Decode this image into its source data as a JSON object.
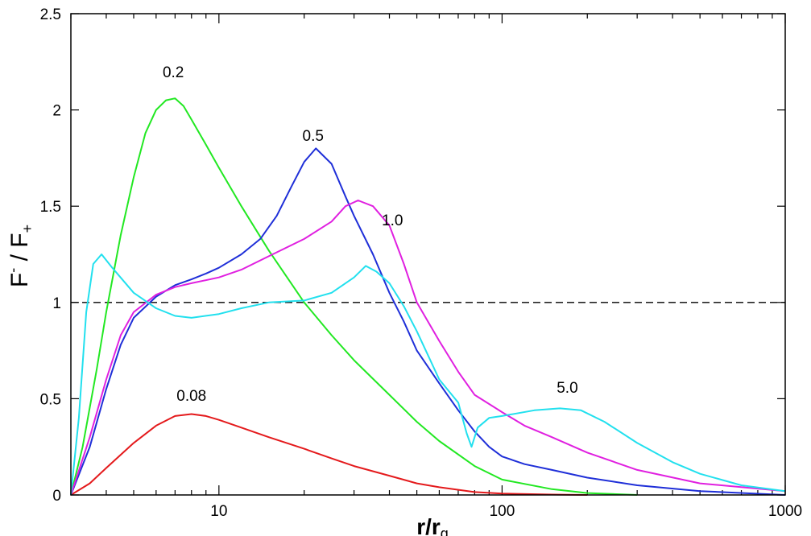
{
  "chart_data": {
    "type": "line",
    "xscale": "log",
    "xlim": [
      3,
      1000
    ],
    "ylim": [
      0,
      2.5
    ],
    "xlabel": {
      "main": "r/r",
      "sub": "g"
    },
    "ylabel": {
      "a": "F",
      "a_sub": "-",
      "sep": " / ",
      "b": "F",
      "b_sub": "+"
    },
    "xticks": [
      {
        "value": 10,
        "label": "10"
      },
      {
        "value": 100,
        "label": "100"
      },
      {
        "value": 1000,
        "label": "1000"
      }
    ],
    "yticks": [
      {
        "value": 0,
        "label": "0"
      },
      {
        "value": 0.5,
        "label": "0.5"
      },
      {
        "value": 1,
        "label": "1"
      },
      {
        "value": 1.5,
        "label": "1.5"
      },
      {
        "value": 2,
        "label": "2"
      },
      {
        "value": 2.5,
        "label": "2.5"
      }
    ],
    "reference_line": {
      "y": 1,
      "style": "dashed",
      "color": "#000000"
    },
    "series": [
      {
        "name": "0.08",
        "color": "#e41a1c",
        "label_at": {
          "x": 8,
          "y": 0.49
        },
        "points": [
          [
            3,
            0
          ],
          [
            3.5,
            0.06
          ],
          [
            4,
            0.14
          ],
          [
            5,
            0.27
          ],
          [
            6,
            0.36
          ],
          [
            7,
            0.41
          ],
          [
            8,
            0.42
          ],
          [
            9,
            0.41
          ],
          [
            10,
            0.39
          ],
          [
            12,
            0.35
          ],
          [
            15,
            0.3
          ],
          [
            20,
            0.24
          ],
          [
            25,
            0.19
          ],
          [
            30,
            0.15
          ],
          [
            40,
            0.1
          ],
          [
            50,
            0.06
          ],
          [
            60,
            0.04
          ],
          [
            80,
            0.015
          ],
          [
            100,
            0.007
          ],
          [
            150,
            0.002
          ],
          [
            200,
            0
          ]
        ]
      },
      {
        "name": "0.2",
        "color": "#22e822",
        "label_at": {
          "x": 6.9,
          "y": 2.17
        },
        "points": [
          [
            3,
            0
          ],
          [
            3.3,
            0.25
          ],
          [
            3.7,
            0.65
          ],
          [
            4,
            0.95
          ],
          [
            4.5,
            1.35
          ],
          [
            5,
            1.65
          ],
          [
            5.5,
            1.88
          ],
          [
            6,
            2.0
          ],
          [
            6.5,
            2.05
          ],
          [
            7,
            2.06
          ],
          [
            7.5,
            2.02
          ],
          [
            8,
            1.95
          ],
          [
            9,
            1.82
          ],
          [
            10,
            1.7
          ],
          [
            12,
            1.5
          ],
          [
            15,
            1.27
          ],
          [
            20,
            1.0
          ],
          [
            25,
            0.83
          ],
          [
            30,
            0.7
          ],
          [
            40,
            0.52
          ],
          [
            50,
            0.38
          ],
          [
            60,
            0.28
          ],
          [
            80,
            0.15
          ],
          [
            100,
            0.08
          ],
          [
            150,
            0.03
          ],
          [
            200,
            0.01
          ],
          [
            300,
            0
          ]
        ]
      },
      {
        "name": "0.5",
        "color": "#1f2fd8",
        "label_at": {
          "x": 21.5,
          "y": 1.84
        },
        "points": [
          [
            3,
            0
          ],
          [
            3.5,
            0.25
          ],
          [
            4,
            0.55
          ],
          [
            4.5,
            0.78
          ],
          [
            5,
            0.92
          ],
          [
            6,
            1.03
          ],
          [
            7,
            1.09
          ],
          [
            8,
            1.12
          ],
          [
            9,
            1.15
          ],
          [
            10,
            1.18
          ],
          [
            12,
            1.25
          ],
          [
            14,
            1.33
          ],
          [
            16,
            1.45
          ],
          [
            18,
            1.6
          ],
          [
            20,
            1.73
          ],
          [
            22,
            1.8
          ],
          [
            25,
            1.72
          ],
          [
            28,
            1.55
          ],
          [
            30,
            1.45
          ],
          [
            35,
            1.25
          ],
          [
            40,
            1.05
          ],
          [
            45,
            0.9
          ],
          [
            50,
            0.75
          ],
          [
            60,
            0.58
          ],
          [
            70,
            0.44
          ],
          [
            80,
            0.33
          ],
          [
            90,
            0.25
          ],
          [
            100,
            0.2
          ],
          [
            120,
            0.16
          ],
          [
            150,
            0.13
          ],
          [
            200,
            0.09
          ],
          [
            300,
            0.05
          ],
          [
            500,
            0.02
          ],
          [
            1000,
            0
          ]
        ]
      },
      {
        "name": "1.0",
        "color": "#e020e0",
        "label_at": {
          "x": 41,
          "y": 1.4
        },
        "points": [
          [
            3,
            0
          ],
          [
            3.5,
            0.3
          ],
          [
            4,
            0.6
          ],
          [
            4.5,
            0.83
          ],
          [
            5,
            0.95
          ],
          [
            6,
            1.04
          ],
          [
            7,
            1.08
          ],
          [
            8,
            1.1
          ],
          [
            10,
            1.13
          ],
          [
            12,
            1.17
          ],
          [
            15,
            1.24
          ],
          [
            20,
            1.33
          ],
          [
            25,
            1.42
          ],
          [
            28,
            1.5
          ],
          [
            31,
            1.53
          ],
          [
            35,
            1.5
          ],
          [
            40,
            1.4
          ],
          [
            45,
            1.2
          ],
          [
            50,
            1.0
          ],
          [
            60,
            0.8
          ],
          [
            70,
            0.64
          ],
          [
            80,
            0.52
          ],
          [
            100,
            0.43
          ],
          [
            120,
            0.36
          ],
          [
            150,
            0.3
          ],
          [
            200,
            0.22
          ],
          [
            300,
            0.13
          ],
          [
            500,
            0.06
          ],
          [
            1000,
            0.02
          ]
        ]
      },
      {
        "name": "5.0",
        "color": "#22e0ee",
        "label_at": {
          "x": 170,
          "y": 0.53
        },
        "points": [
          [
            3,
            0
          ],
          [
            3.2,
            0.4
          ],
          [
            3.4,
            0.95
          ],
          [
            3.6,
            1.2
          ],
          [
            3.85,
            1.25
          ],
          [
            4.2,
            1.18
          ],
          [
            5,
            1.05
          ],
          [
            6,
            0.97
          ],
          [
            7,
            0.93
          ],
          [
            8,
            0.92
          ],
          [
            10,
            0.94
          ],
          [
            12,
            0.97
          ],
          [
            15,
            1.0
          ],
          [
            20,
            1.01
          ],
          [
            25,
            1.05
          ],
          [
            30,
            1.13
          ],
          [
            33,
            1.19
          ],
          [
            36,
            1.16
          ],
          [
            40,
            1.1
          ],
          [
            45,
            0.98
          ],
          [
            50,
            0.85
          ],
          [
            55,
            0.72
          ],
          [
            60,
            0.6
          ],
          [
            70,
            0.48
          ],
          [
            75,
            0.32
          ],
          [
            78,
            0.25
          ],
          [
            82,
            0.35
          ],
          [
            90,
            0.4
          ],
          [
            100,
            0.41
          ],
          [
            130,
            0.44
          ],
          [
            160,
            0.45
          ],
          [
            190,
            0.44
          ],
          [
            230,
            0.38
          ],
          [
            300,
            0.27
          ],
          [
            400,
            0.17
          ],
          [
            500,
            0.11
          ],
          [
            700,
            0.05
          ],
          [
            1000,
            0.02
          ]
        ]
      }
    ]
  }
}
